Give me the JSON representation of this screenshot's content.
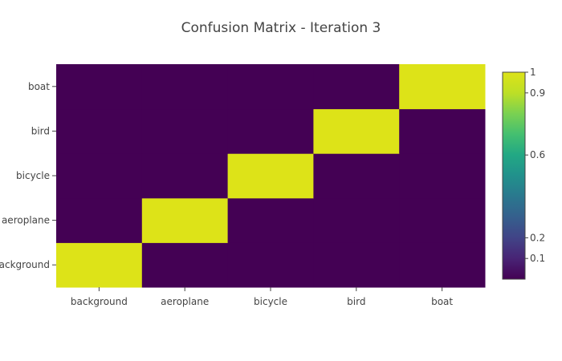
{
  "chart_data": {
    "type": "heatmap",
    "title": "Confusion Matrix - Iteration 3",
    "x_categories": [
      "background",
      "aeroplane",
      "bicycle",
      "bird",
      "boat"
    ],
    "y_categories": [
      "background",
      "aeroplane",
      "bicycle",
      "bird",
      "boat"
    ],
    "z": [
      [
        1,
        0,
        0,
        0,
        0
      ],
      [
        0,
        1,
        0,
        0,
        0
      ],
      [
        0,
        0,
        1,
        0,
        0
      ],
      [
        0,
        0,
        0,
        1,
        0
      ],
      [
        0,
        0,
        0,
        0,
        1
      ]
    ],
    "zlim": [
      0,
      1
    ],
    "colorscale": "Viridis",
    "colorbar_ticks": [
      {
        "value": 1,
        "label": "1"
      },
      {
        "value": 0.9,
        "label": "0.9"
      },
      {
        "value": 0.6,
        "label": "0.6"
      },
      {
        "value": 0.2,
        "label": "0.2"
      },
      {
        "value": 0.1,
        "label": "0.1"
      }
    ],
    "colors": {
      "low": "#440154",
      "high": "#dde318"
    }
  }
}
